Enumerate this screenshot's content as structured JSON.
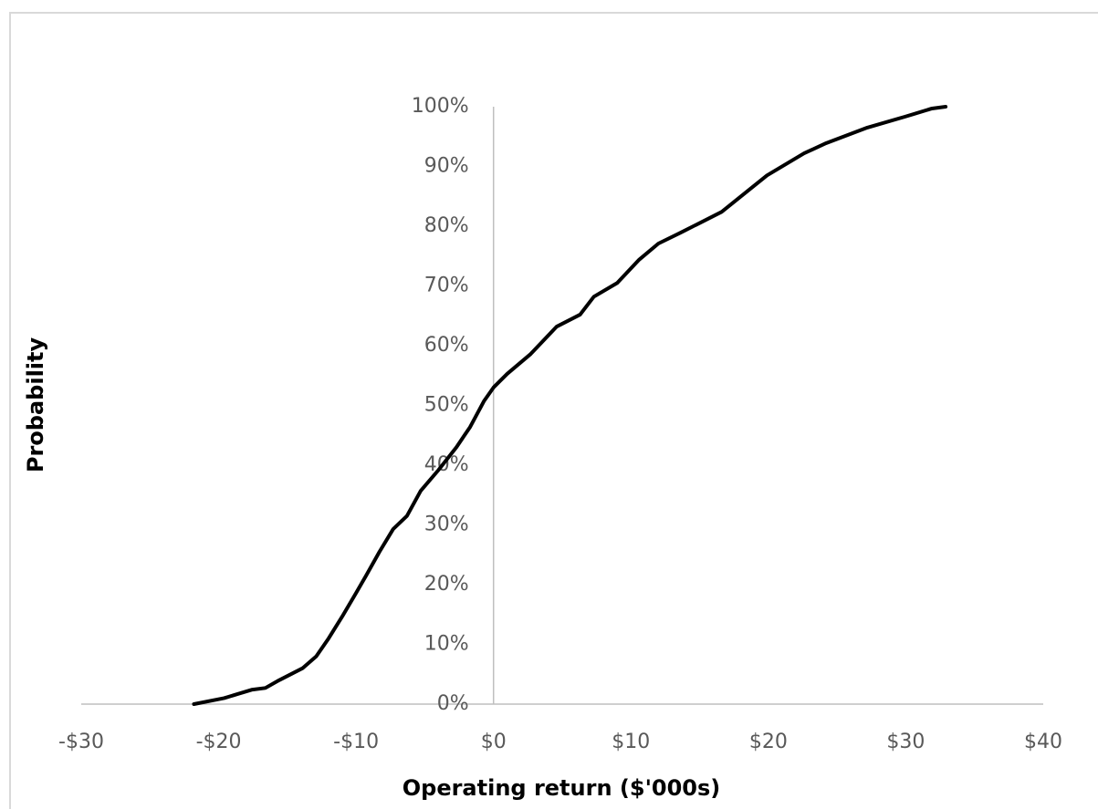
{
  "chart_data": {
    "type": "line",
    "x_label": "Operating return ($'000s)",
    "y_label": "Probability",
    "x": [
      -21.8,
      -19.6,
      -17.6,
      -16.6,
      -15.6,
      -13.9,
      -12.9,
      -12,
      -11,
      -10,
      -9.3,
      -8.3,
      -7.3,
      -6.3,
      -5.3,
      -4,
      -2.7,
      -1.7,
      -0.7,
      0,
      1,
      2.7,
      4.6,
      6.3,
      7.3,
      9,
      10.6,
      12,
      13.6,
      16.6,
      18.6,
      19.9,
      22.6,
      24.2,
      27.2,
      29.9,
      31.9,
      32.9
    ],
    "values": [
      0,
      1,
      2.4,
      2.7,
      4,
      6,
      8,
      11,
      14.7,
      18.6,
      21.4,
      25.5,
      29.3,
      31.5,
      35.7,
      39.2,
      43,
      46.4,
      50.7,
      53,
      55.3,
      58.6,
      63.2,
      65.2,
      68.2,
      70.5,
      74.4,
      77.1,
      78.9,
      82.4,
      86.1,
      88.5,
      92.2,
      93.9,
      96.5,
      98.3,
      99.7,
      100
    ],
    "color": "#000000",
    "xlim": [
      -30,
      40
    ],
    "xticks": [
      {
        "value": -30,
        "label": "-$30"
      },
      {
        "value": -20,
        "label": "-$20"
      },
      {
        "value": -10,
        "label": "-$10"
      },
      {
        "value": 0,
        "label": "$0"
      },
      {
        "value": 10,
        "label": "$10"
      },
      {
        "value": 20,
        "label": "$20"
      },
      {
        "value": 30,
        "label": "$30"
      },
      {
        "value": 40,
        "label": "$40"
      }
    ],
    "ylim": [
      0,
      100
    ],
    "yticks": [
      {
        "value": 0,
        "label": "0%"
      },
      {
        "value": 10,
        "label": "10%"
      },
      {
        "value": 20,
        "label": "20%"
      },
      {
        "value": 30,
        "label": "30%"
      },
      {
        "value": 40,
        "label": "40%"
      },
      {
        "value": 50,
        "label": "50%"
      },
      {
        "value": 60,
        "label": "60%"
      },
      {
        "value": 70,
        "label": "70%"
      },
      {
        "value": 80,
        "label": "80%"
      },
      {
        "value": 90,
        "label": "90%"
      },
      {
        "value": 100,
        "label": "100%"
      }
    ],
    "grid": false
  }
}
